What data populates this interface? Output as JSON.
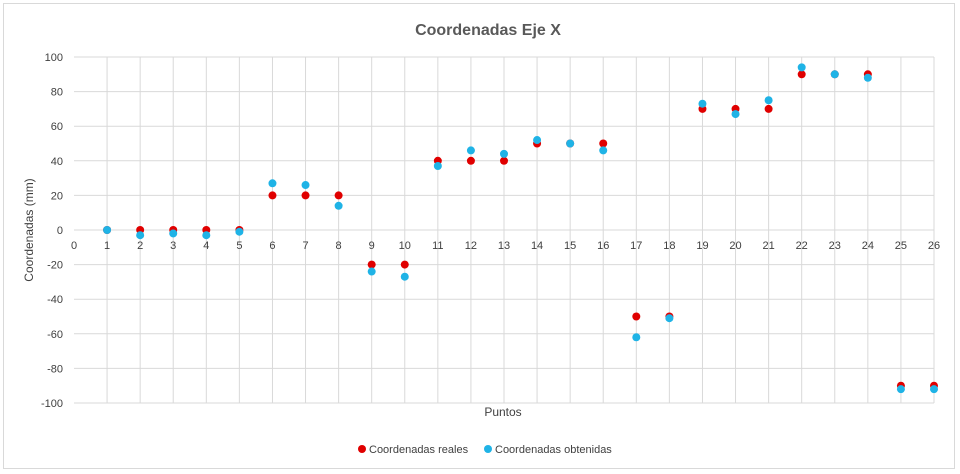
{
  "chart_data": {
    "type": "scatter",
    "title": "Coordenadas Eje X",
    "xlabel": "Puntos",
    "ylabel": "Coordenadas (mm)",
    "xlim": [
      0,
      26
    ],
    "ylim": [
      -100,
      100
    ],
    "xticks": [
      0,
      1,
      2,
      3,
      4,
      5,
      6,
      7,
      8,
      9,
      10,
      11,
      12,
      13,
      14,
      15,
      16,
      17,
      18,
      19,
      20,
      21,
      22,
      23,
      24,
      25,
      26
    ],
    "yticks": [
      -100,
      -80,
      -60,
      -40,
      -20,
      0,
      20,
      40,
      60,
      80,
      100
    ],
    "grid": true,
    "legend_position": "bottom",
    "series": [
      {
        "name": "Coordenadas reales",
        "color": "#e00000",
        "x": [
          1,
          2,
          3,
          4,
          5,
          6,
          7,
          8,
          9,
          10,
          11,
          12,
          13,
          14,
          15,
          16,
          17,
          18,
          19,
          20,
          21,
          22,
          23,
          24,
          25,
          26
        ],
        "y": [
          0,
          0,
          0,
          0,
          0,
          20,
          20,
          20,
          -20,
          -20,
          40,
          40,
          40,
          50,
          50,
          50,
          -50,
          -50,
          70,
          70,
          70,
          90,
          90,
          90,
          -90,
          -90
        ]
      },
      {
        "name": "Coordenadas obtenidas",
        "color": "#1fb3e6",
        "x": [
          1,
          2,
          3,
          4,
          5,
          6,
          7,
          8,
          9,
          10,
          11,
          12,
          13,
          14,
          15,
          16,
          17,
          18,
          19,
          20,
          21,
          22,
          23,
          24,
          25,
          26
        ],
        "y": [
          0,
          -3,
          -2,
          -3,
          -1,
          27,
          26,
          14,
          -24,
          -27,
          37,
          46,
          44,
          52,
          50,
          46,
          -62,
          -51,
          73,
          67,
          75,
          94,
          90,
          88,
          -92,
          -92
        ]
      }
    ]
  }
}
